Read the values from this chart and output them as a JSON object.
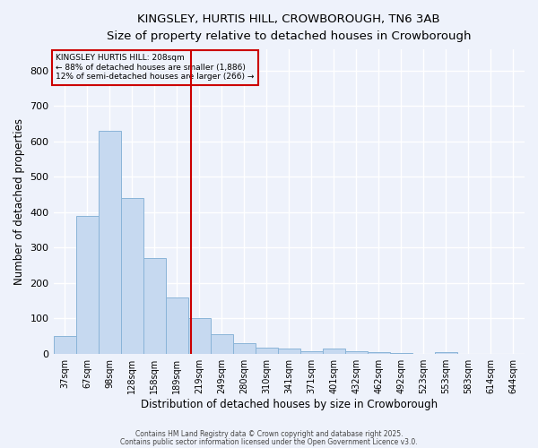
{
  "title": "KINGSLEY, HURTIS HILL, CROWBOROUGH, TN6 3AB",
  "subtitle": "Size of property relative to detached houses in Crowborough",
  "xlabel": "Distribution of detached houses by size in Crowborough",
  "ylabel": "Number of detached properties",
  "bar_labels": [
    "37sqm",
    "67sqm",
    "98sqm",
    "128sqm",
    "158sqm",
    "189sqm",
    "219sqm",
    "249sqm",
    "280sqm",
    "310sqm",
    "341sqm",
    "371sqm",
    "401sqm",
    "432sqm",
    "462sqm",
    "492sqm",
    "523sqm",
    "553sqm",
    "583sqm",
    "614sqm",
    "644sqm"
  ],
  "bar_values": [
    50,
    390,
    630,
    440,
    270,
    160,
    100,
    55,
    30,
    18,
    15,
    8,
    15,
    8,
    5,
    2,
    0,
    5,
    0,
    0,
    0
  ],
  "bar_color": "#c6d9f0",
  "bar_edgecolor": "#8ab4d8",
  "vline_color": "#cc0000",
  "annotation_title": "KINGSLEY HURTIS HILL: 208sqm",
  "annotation_line1": "← 88% of detached houses are smaller (1,886)",
  "annotation_line2": "12% of semi-detached houses are larger (266) →",
  "annotation_box_edgecolor": "#cc0000",
  "ylim": [
    0,
    860
  ],
  "yticks": [
    0,
    100,
    200,
    300,
    400,
    500,
    600,
    700,
    800
  ],
  "footnote1": "Contains HM Land Registry data © Crown copyright and database right 2025.",
  "footnote2": "Contains public sector information licensed under the Open Government Licence v3.0.",
  "bg_color": "#eef2fb",
  "grid_color": "#ffffff"
}
